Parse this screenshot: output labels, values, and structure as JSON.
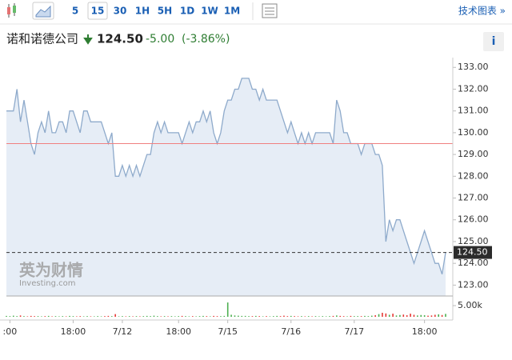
{
  "toolbar": {
    "buttons": [
      "5",
      "15",
      "30",
      "1H",
      "5H",
      "1D",
      "1W",
      "1M"
    ],
    "selected_index": 1,
    "tech_chart": "技术图表 »"
  },
  "header": {
    "name": "诺和诺德公司",
    "price": "124.50",
    "change": "-5.00",
    "change_pct": "(-3.86%)",
    "info": "i"
  },
  "watermark": {
    "brand": "英为财情",
    "site": "Investing.com"
  },
  "chart_data": {
    "type": "line",
    "series": [
      {
        "color": "#8eaacb",
        "fill": "#e6edf6",
        "values": [
          131,
          131,
          131,
          132,
          130.5,
          131.5,
          130.5,
          129.5,
          129,
          130,
          130.5,
          130,
          131,
          130,
          130,
          130.5,
          130.5,
          130,
          131,
          131,
          130.5,
          130,
          131,
          131,
          130.5,
          130.5,
          130.5,
          130.5,
          130,
          129.5,
          130,
          128,
          128,
          128.5,
          128,
          128.5,
          128,
          128.5,
          128,
          128.5,
          129,
          129,
          130,
          130.5,
          130,
          130.5,
          130,
          130,
          130,
          130,
          129.5,
          130,
          130.5,
          130,
          130.5,
          130.5,
          131,
          130.5,
          131,
          130,
          129.5,
          130,
          131,
          131.5,
          131.5,
          132,
          132,
          132.5,
          132.5,
          132.5,
          132,
          132,
          131.5,
          132,
          131.5,
          131.5,
          131.5,
          131.5,
          131,
          130.5,
          130,
          130.5,
          130,
          129.5,
          130,
          129.5,
          130,
          129.5,
          130,
          130,
          130,
          130,
          130,
          129.5,
          131.5,
          131,
          130,
          130,
          129.5,
          129.5,
          129.5,
          129,
          129.5,
          129.5,
          129.5,
          129,
          129,
          128.5,
          125,
          126,
          125.5,
          126,
          126,
          125.5,
          125,
          124.5,
          124,
          124.5,
          125,
          125.5,
          125,
          124.5,
          124,
          124,
          123.5,
          124.5
        ]
      }
    ],
    "xlim": [
      0,
      125
    ],
    "xticks": [
      {
        "value": 1,
        "label": ":00"
      },
      {
        "value": 19,
        "label": "18:00"
      },
      {
        "value": 33,
        "label": "7/12"
      },
      {
        "value": 49,
        "label": "18:00"
      },
      {
        "value": 63,
        "label": "7/15"
      },
      {
        "value": 81,
        "label": "7/16"
      },
      {
        "value": 99,
        "label": "7/17"
      },
      {
        "value": 119,
        "label": "18:00"
      }
    ],
    "ylim": [
      122.5,
      133.45
    ],
    "yticks": [
      {
        "value": 123,
        "label": "123.00"
      },
      {
        "value": 124,
        "label": "124.00"
      },
      {
        "value": 125,
        "label": "125.00"
      },
      {
        "value": 126,
        "label": "126.00"
      },
      {
        "value": 127,
        "label": "127.00"
      },
      {
        "value": 128,
        "label": "128.00"
      },
      {
        "value": 129,
        "label": "129.00"
      },
      {
        "value": 130,
        "label": "130.00"
      },
      {
        "value": 131,
        "label": "131.00"
      },
      {
        "value": 132,
        "label": "132.00"
      },
      {
        "value": 133,
        "label": "133.00"
      }
    ],
    "reference_line": {
      "value": 129.5,
      "color": "#f08080"
    },
    "last_price": {
      "value": 124.5,
      "label": "124.50"
    },
    "volume": {
      "up_color": "#4caf50",
      "down_color": "#e53935",
      "ylim": [
        0,
        9300
      ],
      "yticks": [
        {
          "value": 5000,
          "label": "5.00k"
        }
      ],
      "values": [
        400,
        300,
        500,
        300,
        600,
        300,
        200,
        400,
        300,
        300,
        200,
        300,
        400,
        200,
        300,
        200,
        300,
        200,
        400,
        300,
        200,
        300,
        200,
        300,
        200,
        200,
        300,
        200,
        300,
        400,
        300,
        1200,
        200,
        300,
        200,
        300,
        200,
        300,
        200,
        300,
        400,
        300,
        500,
        300,
        200,
        300,
        200,
        300,
        200,
        300,
        400,
        300,
        200,
        300,
        200,
        300,
        400,
        300,
        200,
        400,
        300,
        300,
        400,
        6400,
        900,
        600,
        500,
        400,
        400,
        300,
        300,
        400,
        300,
        200,
        300,
        200,
        300,
        400,
        300,
        500,
        300,
        400,
        300,
        200,
        300,
        200,
        300,
        200,
        300,
        200,
        300,
        200,
        300,
        400,
        600,
        400,
        300,
        200,
        400,
        300,
        300,
        300,
        400,
        300,
        500,
        700,
        1200,
        1800,
        1500,
        900,
        1400,
        600,
        800,
        1000,
        700,
        1400,
        900,
        600,
        800,
        700,
        500,
        600,
        900,
        1100,
        800,
        1300
      ]
    }
  }
}
